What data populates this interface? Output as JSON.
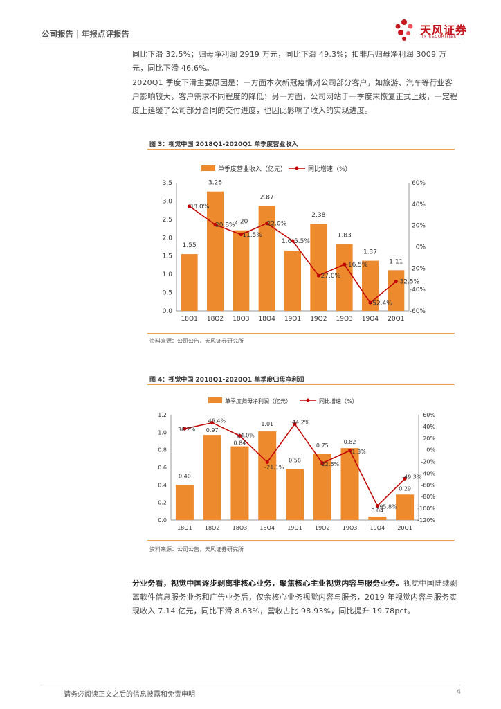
{
  "header": {
    "category": "公司报告",
    "separator": "|",
    "subcategory": "年报点评报告",
    "logo_text": "天风证券",
    "logo_sub": "TF SECURITIES"
  },
  "paragraphs": {
    "p1": "同比下滑 32.5%；归母净利润 2919 万元，同比下滑 49.3%；扣非后归母净利润 3009 万元，同比下滑 46.6%。",
    "p2": "2020Q1 季度下滑主要原因是：一方面本次新冠疫情对公司部分客户，如旅游、汽车等行业客户影响较大，客户需求不同程度的降低；另一方面，公司网站于一季度末恢复正式上线，一定程度上延缓了公司部分合同的交付进度，也因此影响了收入的实现进度。",
    "p3_bold": "分业务看，视觉中国逐步剥离非核心业务，聚焦核心主业视觉内容与服务业务。",
    "p3_rest": "视觉中国陆续剥离软件信息服务业务和广告业务后，仅余核心业务视觉内容与服务，2019 年视觉内容与服务实现收入 7.14 亿元，同比下滑 8.63%，营收占比 98.93%，同比提升 19.78pct。"
  },
  "figure3": {
    "title": "图 3：视觉中国 2018Q1-2020Q1 单季度营业收入",
    "source": "资料来源：公司公告，天风证券研究所"
  },
  "figure4": {
    "title": "图 4：视觉中国 2018Q1-2020Q1 单季度归母净利润",
    "source": "资料来源：公司公告，天风证券研究所"
  },
  "footer": {
    "disclaimer": "请务必阅读正文之后的信息披露和免责申明",
    "page": "4"
  },
  "colors": {
    "bar": "#ED8A2E",
    "line": "#C00000"
  },
  "chart_data": [
    {
      "type": "bar",
      "title": "图 3：视觉中国 2018Q1-2020Q1 单季度营业收入",
      "categories": [
        "18Q1",
        "18Q2",
        "18Q3",
        "18Q4",
        "19Q1",
        "19Q2",
        "19Q3",
        "19Q4",
        "20Q1"
      ],
      "series": [
        {
          "name": "单季度营业收入（亿元）",
          "kind": "bar",
          "axis": "left",
          "values": [
            1.55,
            3.26,
            2.2,
            2.87,
            1.64,
            2.38,
            1.83,
            1.37,
            1.11
          ],
          "labels": [
            "1.55",
            "3.26",
            "2.20",
            "2.87",
            "",
            "2.38",
            "1.83",
            "1.37",
            "1.11"
          ]
        },
        {
          "name": "同比增速（%）",
          "kind": "line",
          "axis": "right",
          "values": [
            38.0,
            20.8,
            11.5,
            22.0,
            5.5,
            -27.0,
            -16.5,
            -52.4,
            -32.5
          ],
          "labels": [
            "38.0%",
            "20.8%",
            "11.5%",
            "22.0%",
            "5.5%",
            "-27.0%",
            "-16.5%",
            "-52.4%",
            "-32.5%"
          ]
        }
      ],
      "left_axis": {
        "min": 0,
        "max": 3.5,
        "ticks": [
          "0.0",
          "0.5",
          "1.0",
          "1.5",
          "2.0",
          "2.5",
          "3.0",
          "3.5"
        ]
      },
      "right_axis": {
        "min": -60,
        "max": 60,
        "ticks": [
          "-60%",
          "-40%",
          "-20%",
          "0%",
          "20%",
          "40%",
          "60%"
        ]
      },
      "extra_label": "1.6"
    },
    {
      "type": "bar",
      "title": "图 4：视觉中国 2018Q1-2020Q1 单季度归母净利润",
      "categories": [
        "18Q1",
        "18Q2",
        "18Q3",
        "18Q4",
        "19Q1",
        "19Q2",
        "19Q3",
        "19Q4",
        "20Q1"
      ],
      "series": [
        {
          "name": "单季度归母净利润（亿元）",
          "kind": "bar",
          "axis": "left",
          "values": [
            0.4,
            0.97,
            0.84,
            1.01,
            0.58,
            0.75,
            0.82,
            0.04,
            0.29
          ],
          "labels": [
            "0.40",
            "0.97",
            "0.84",
            "1.01",
            "0.58",
            "0.75",
            "0.82",
            "0.04",
            "0.29"
          ]
        },
        {
          "name": "同比增速（%）",
          "kind": "line",
          "axis": "right",
          "values": [
            36.2,
            46.4,
            24.0,
            -21.1,
            44.2,
            -22.6,
            -1.3,
            -95.8,
            -49.3
          ],
          "labels": [
            "36.2%",
            "46.4%",
            "24.0%",
            "-21.1%",
            "44.2%",
            "-22.6%",
            "-1.3%",
            "-95.8%",
            "-49.3%"
          ]
        }
      ],
      "left_axis": {
        "min": 0,
        "max": 1.2,
        "ticks": [
          "0.0",
          "0.2",
          "0.4",
          "0.6",
          "0.8",
          "1.0",
          "1.2"
        ]
      },
      "right_axis": {
        "min": -120,
        "max": 60,
        "ticks": [
          "-120%",
          "-100%",
          "-80%",
          "-60%",
          "-40%",
          "-20%",
          "0%",
          "20%",
          "40%",
          "60%"
        ]
      }
    }
  ]
}
